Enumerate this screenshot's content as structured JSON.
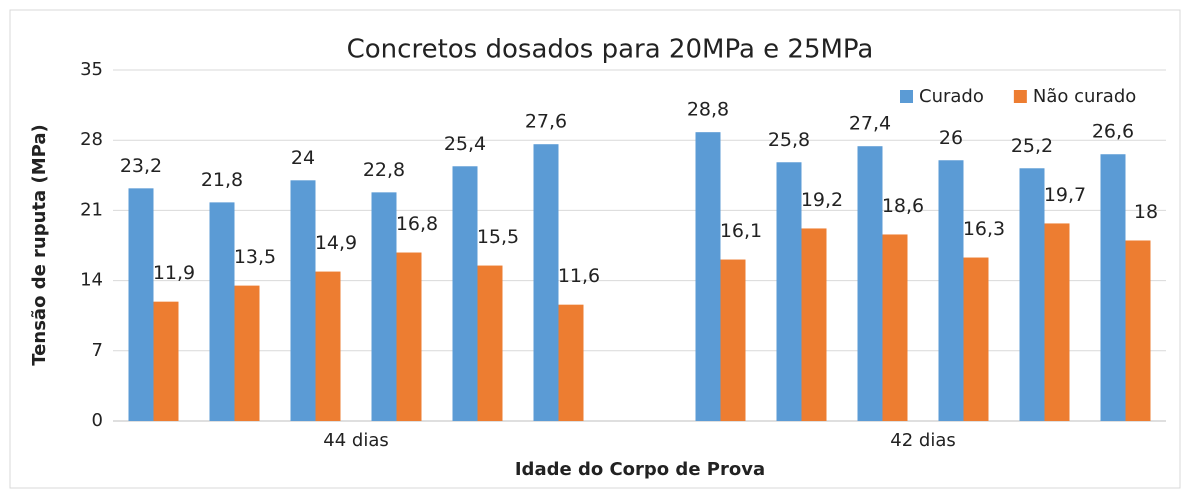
{
  "chart_data": {
    "type": "bar",
    "title": "Concretos dosados para 20MPa e 25MPa",
    "x_label": "Idade do Corpo de Prova",
    "y_label": "Tensão de ruputa (MPa)",
    "categories": [
      null,
      null,
      null,
      null,
      null,
      null,
      null,
      null,
      null,
      null,
      null,
      null,
      null
    ],
    "groups": [
      "44 dias",
      "42 dias"
    ],
    "series": [
      {
        "name": "Curado",
        "color": "#5b9bd5",
        "values": [
          23.2,
          21.8,
          24,
          22.8,
          25.4,
          27.6,
          null,
          28.8,
          25.8,
          27.4,
          26,
          25.2,
          26.6
        ],
        "value_labels": [
          "23,2",
          "21,8",
          "24",
          "22,8",
          "25,4",
          "27,6",
          null,
          "28,8",
          "25,8",
          "27,4",
          "26",
          "25,2",
          "26,6"
        ]
      },
      {
        "name": "Não curado",
        "color": "#ed7d31",
        "values": [
          11.9,
          13.5,
          14.9,
          16.8,
          15.5,
          11.6,
          null,
          16.1,
          19.2,
          18.6,
          16.3,
          19.7,
          18
        ],
        "value_labels": [
          "11,9",
          "13,5",
          "14,9",
          "16,8",
          "15,5",
          "11,6",
          null,
          "16,1",
          "19,2",
          "18,6",
          "16,3",
          "19,7",
          "18"
        ]
      }
    ],
    "ylim": [
      0,
      35
    ],
    "yticks": [
      0,
      7,
      14,
      21,
      28,
      35
    ],
    "grid": true,
    "legend": "top-right"
  }
}
